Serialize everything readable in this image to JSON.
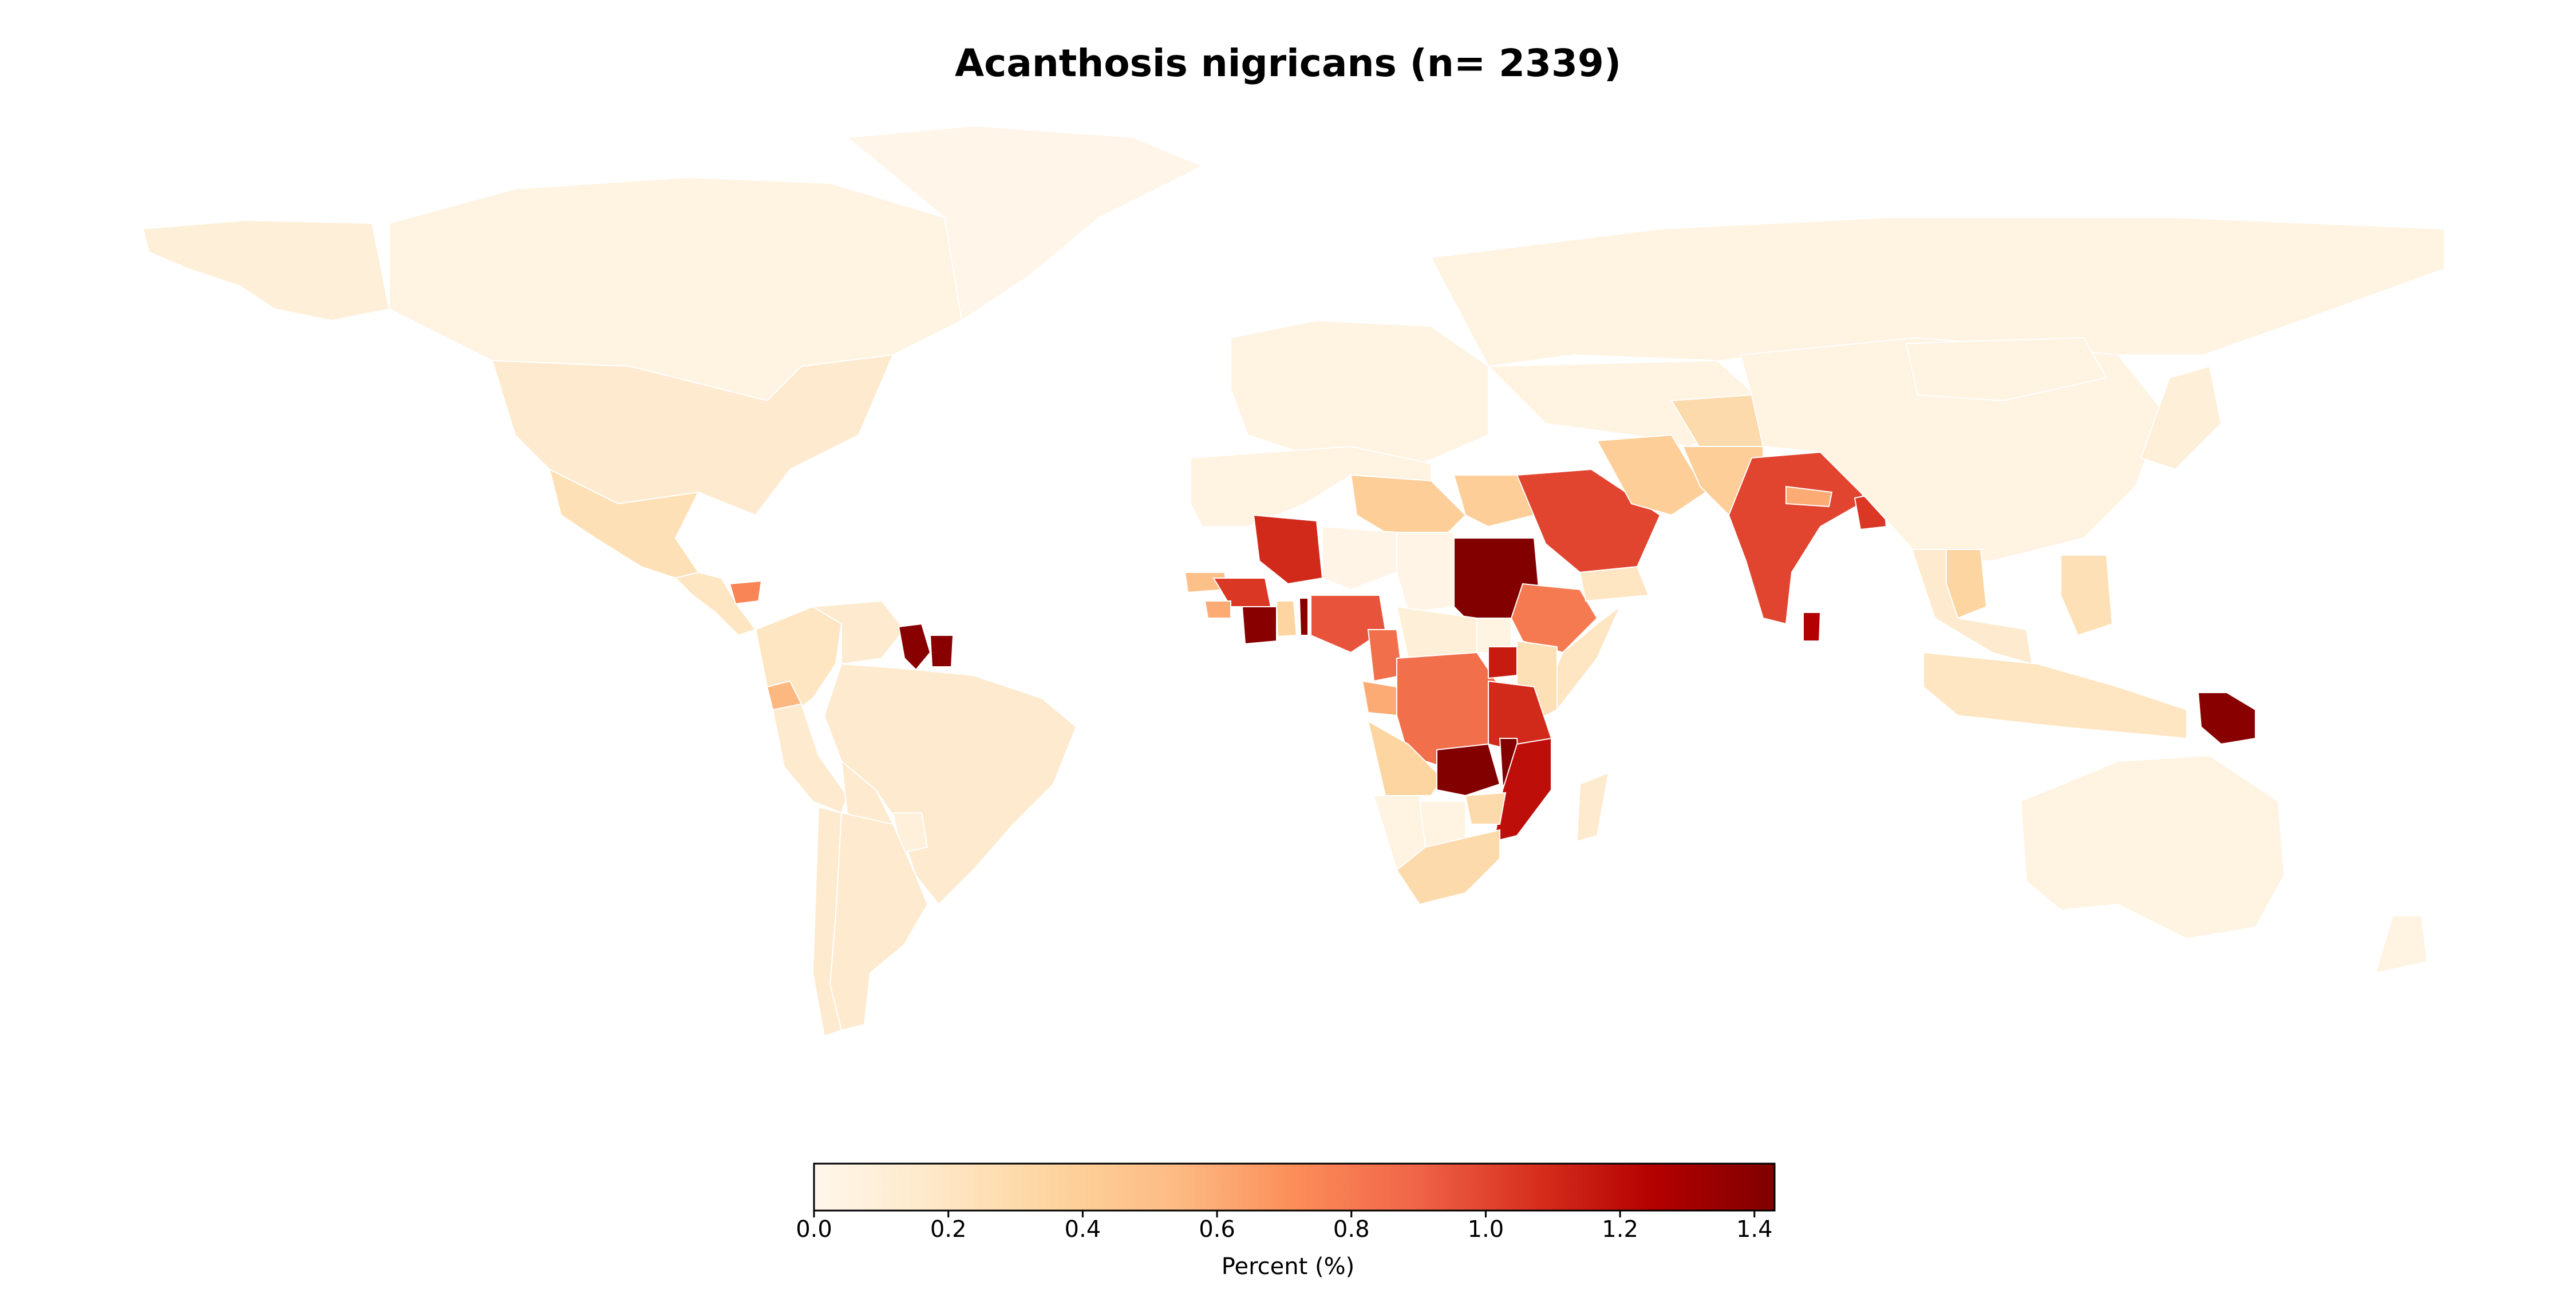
{
  "title": "Acanthosis nigricans (n= 2339)",
  "colorbar": {
    "label": "Percent (%)",
    "min": 0.0,
    "max": 1.43,
    "ticks": [
      "0.0",
      "0.2",
      "0.4",
      "0.6",
      "0.8",
      "1.0",
      "1.2",
      "1.4"
    ],
    "colormap": [
      "#fff5eb",
      "#fee6ce",
      "#fdd0a2",
      "#fdae6b",
      "#fd8d3c",
      "#f16913",
      "#d94801",
      "#a63603",
      "#7f2704"
    ],
    "colors": [
      "#fff7ec",
      "#fee8c8",
      "#fdd49e",
      "#fdbb84",
      "#fc8d59",
      "#ef6548",
      "#d7301f",
      "#b30000",
      "#7f0000"
    ]
  },
  "chart_data": {
    "type": "choropleth",
    "title": "Acanthosis nigricans (n= 2339)",
    "legend_label": "Percent (%)",
    "value_range": [
      0.0,
      1.43
    ],
    "regions": [
      {
        "name": "Canada",
        "value": 0.05
      },
      {
        "name": "Alaska",
        "value": 0.1
      },
      {
        "name": "United States",
        "value": 0.15
      },
      {
        "name": "Greenland",
        "value": 0.02
      },
      {
        "name": "Mexico",
        "value": 0.25
      },
      {
        "name": "Central America",
        "value": 0.2
      },
      {
        "name": "Honduras",
        "value": 0.75
      },
      {
        "name": "Colombia",
        "value": 0.2
      },
      {
        "name": "Ecuador",
        "value": 0.55
      },
      {
        "name": "Venezuela",
        "value": 0.15
      },
      {
        "name": "Guyana",
        "value": 1.4
      },
      {
        "name": "Suriname",
        "value": 1.4
      },
      {
        "name": "Brazil",
        "value": 0.15
      },
      {
        "name": "Peru",
        "value": 0.15
      },
      {
        "name": "Bolivia",
        "value": 0.15
      },
      {
        "name": "Paraguay",
        "value": 0.08
      },
      {
        "name": "Argentina",
        "value": 0.15
      },
      {
        "name": "Chile",
        "value": 0.15
      },
      {
        "name": "Europe",
        "value": 0.05
      },
      {
        "name": "Russia",
        "value": 0.05
      },
      {
        "name": "Central Asia",
        "value": 0.05
      },
      {
        "name": "Iran",
        "value": 0.4
      },
      {
        "name": "Afghanistan",
        "value": 0.3
      },
      {
        "name": "Pakistan",
        "value": 0.4
      },
      {
        "name": "Saudi Arabia",
        "value": 1.0
      },
      {
        "name": "Yemen",
        "value": 0.2
      },
      {
        "name": "India",
        "value": 1.0
      },
      {
        "name": "Nepal",
        "value": 0.6
      },
      {
        "name": "Bangladesh",
        "value": 1.05
      },
      {
        "name": "Sri Lanka",
        "value": 1.25
      },
      {
        "name": "China",
        "value": 0.05
      },
      {
        "name": "Mongolia",
        "value": 0.05
      },
      {
        "name": "Japan",
        "value": 0.1
      },
      {
        "name": "Thailand",
        "value": 0.35
      },
      {
        "name": "Southeast Asia",
        "value": 0.15
      },
      {
        "name": "Philippines",
        "value": 0.25
      },
      {
        "name": "Indonesia",
        "value": 0.2
      },
      {
        "name": "Papua New Guinea",
        "value": 1.4
      },
      {
        "name": "Australia",
        "value": 0.05
      },
      {
        "name": "New Zealand",
        "value": 0.05
      },
      {
        "name": "North Africa",
        "value": 0.05
      },
      {
        "name": "Libya",
        "value": 0.4
      },
      {
        "name": "Egypt",
        "value": 0.4
      },
      {
        "name": "Mali",
        "value": 1.1
      },
      {
        "name": "Senegal",
        "value": 0.5
      },
      {
        "name": "Guinea",
        "value": 1.05
      },
      {
        "name": "Sierra Leone",
        "value": 0.6
      },
      {
        "name": "Côte d'Ivoire",
        "value": 1.4
      },
      {
        "name": "Ghana",
        "value": 0.35
      },
      {
        "name": "Togo",
        "value": 1.4
      },
      {
        "name": "Nigeria",
        "value": 0.95
      },
      {
        "name": "Niger",
        "value": 0.03
      },
      {
        "name": "Chad",
        "value": 0.03
      },
      {
        "name": "Cameroon",
        "value": 0.85
      },
      {
        "name": "Central African Republic",
        "value": 0.1
      },
      {
        "name": "Sudan",
        "value": 1.42
      },
      {
        "name": "South Sudan",
        "value": 0.05
      },
      {
        "name": "Ethiopia",
        "value": 0.8
      },
      {
        "name": "Somalia",
        "value": 0.2
      },
      {
        "name": "Gabon",
        "value": 0.6
      },
      {
        "name": "DR Congo",
        "value": 0.85
      },
      {
        "name": "Uganda",
        "value": 1.15
      },
      {
        "name": "Kenya",
        "value": 0.25
      },
      {
        "name": "Tanzania",
        "value": 1.1
      },
      {
        "name": "Angola",
        "value": 0.35
      },
      {
        "name": "Zambia",
        "value": 1.42
      },
      {
        "name": "Malawi",
        "value": 1.42
      },
      {
        "name": "Mozambique",
        "value": 1.2
      },
      {
        "name": "Zimbabwe",
        "value": 0.3
      },
      {
        "name": "Namibia",
        "value": 0.05
      },
      {
        "name": "Botswana",
        "value": 0.05
      },
      {
        "name": "South Africa",
        "value": 0.3
      },
      {
        "name": "Madagascar",
        "value": 0.15
      }
    ]
  }
}
